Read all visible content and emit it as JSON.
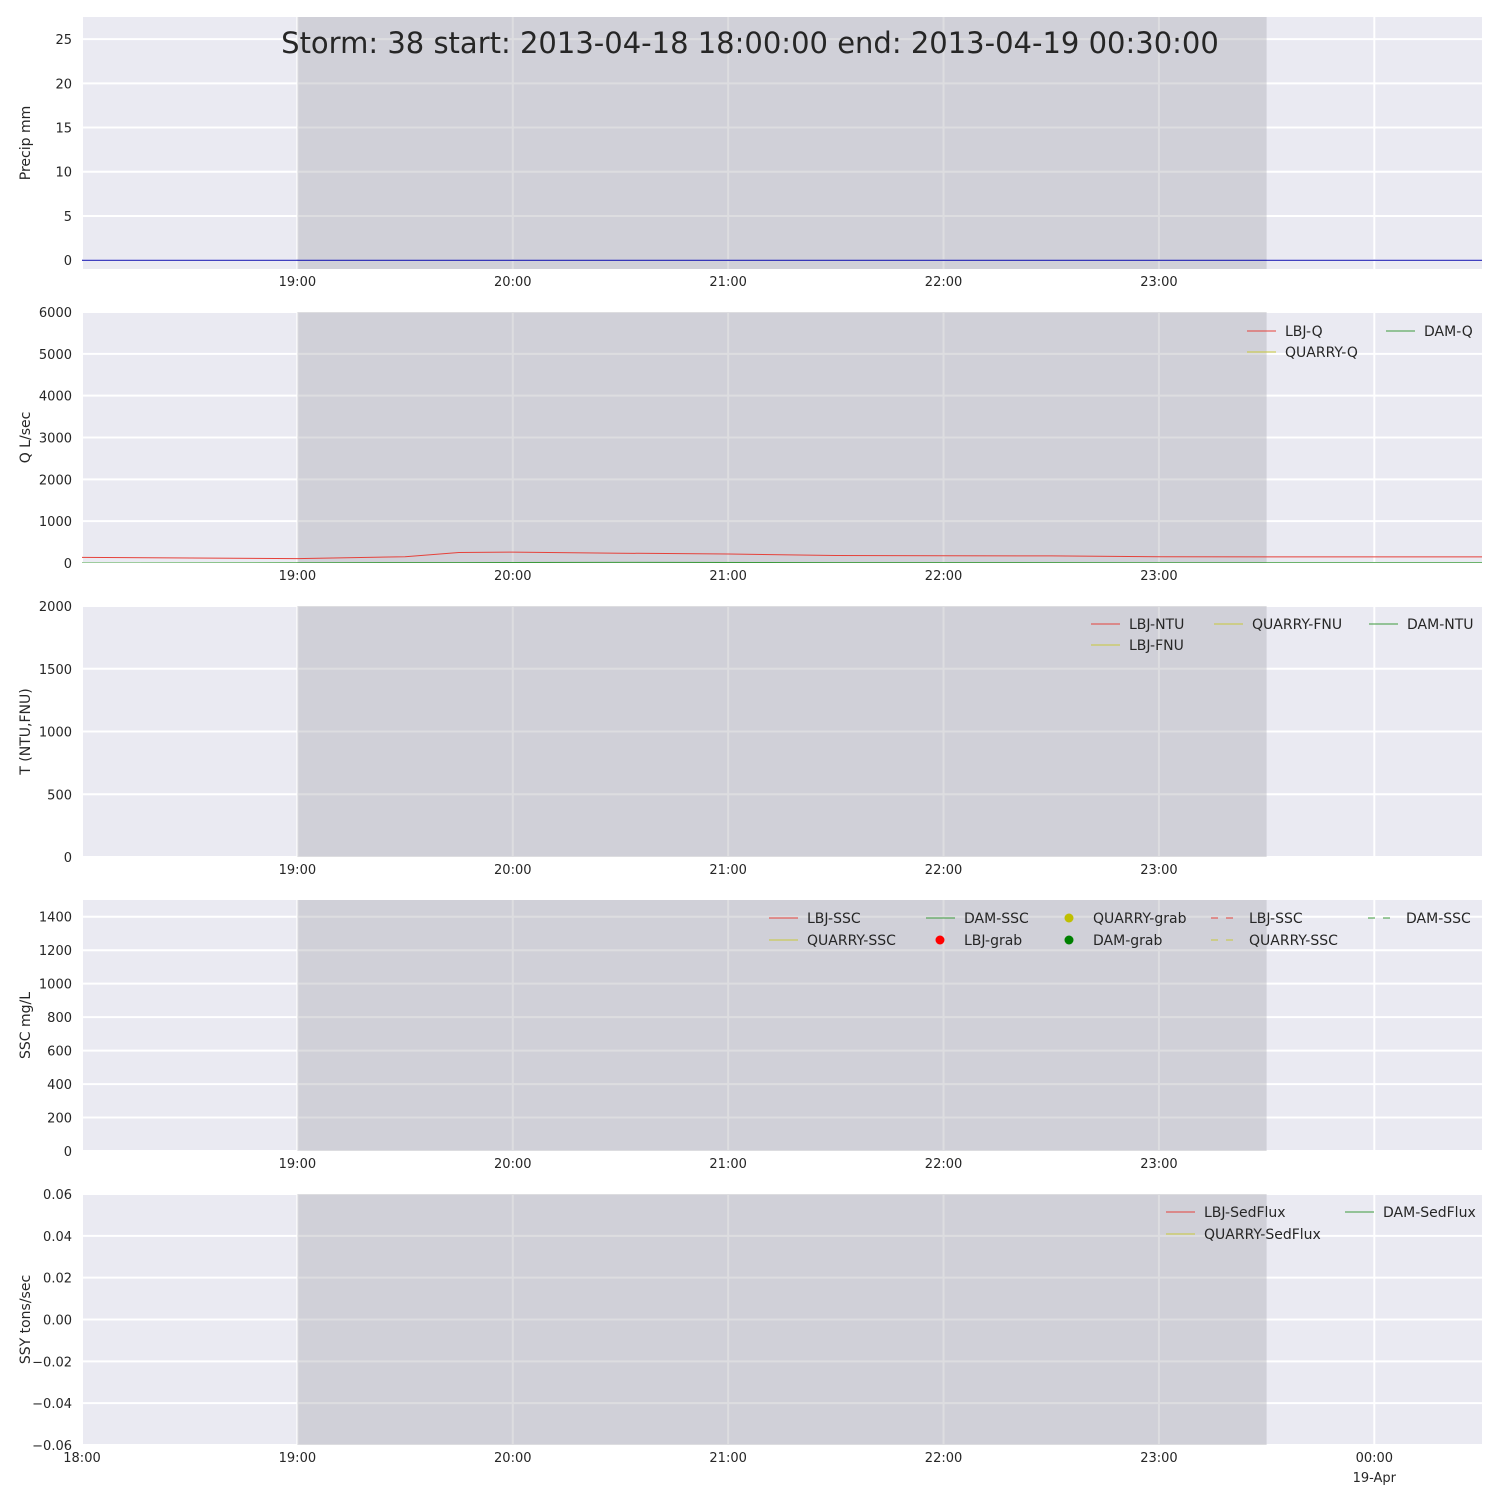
{
  "title": "Storm: 38 start: 2013-04-18 18:00:00 end: 2013-04-19 00:30:00",
  "x_axis": {
    "ticks": [
      "18:00",
      "19:00",
      "20:00",
      "21:00",
      "22:00",
      "23:00",
      "00:00"
    ],
    "date_label": "19-Apr"
  },
  "colors": {
    "plot_bg": "#eaeaf2",
    "storm_shade": "#cfcfd6",
    "grid": "#ffffff"
  },
  "chart_data": [
    {
      "type": "line",
      "ylabel": "Precip mm",
      "ylim": [
        -1,
        27.5
      ],
      "yticks": [
        "0",
        "5",
        "10",
        "15",
        "20",
        "25"
      ],
      "ytick_values": [
        0,
        5,
        10,
        15,
        20,
        25
      ],
      "x_range": [
        "2013-04-18 18:00",
        "2013-04-19 00:30"
      ],
      "storm_shading": [
        "2013-04-18 19:00",
        "2013-04-18 23:30"
      ],
      "legend": [],
      "series": [
        {
          "color": "#0000aa",
          "x": [
            "2013-04-18 18:00",
            "2013-04-19 00:30"
          ],
          "y": [
            0,
            0
          ]
        }
      ]
    },
    {
      "type": "line",
      "ylabel": "Q L/sec",
      "ylim": [
        0,
        6000
      ],
      "yticks": [
        "0",
        "1000",
        "2000",
        "3000",
        "4000",
        "5000",
        "6000"
      ],
      "ytick_values": [
        0,
        1000,
        2000,
        3000,
        4000,
        5000,
        6000
      ],
      "x_range": [
        "2013-04-18 18:00",
        "2013-04-19 00:30"
      ],
      "storm_shading": [
        "2013-04-18 19:00",
        "2013-04-18 23:30"
      ],
      "legend_placement": "top-right",
      "legend": [
        {
          "label": "LBJ-Q",
          "color": "#e5423b",
          "style": "line"
        },
        {
          "label": "DAM-Q",
          "color": "#3c9a3c",
          "style": "line"
        },
        {
          "label": "QUARRY-Q",
          "color": "#c8c83a",
          "style": "line"
        }
      ],
      "series": [
        {
          "name": "LBJ-Q",
          "color": "#e5423b",
          "x": [
            "2013-04-18 18:00",
            "2013-04-18 19:00",
            "2013-04-18 19:30",
            "2013-04-18 19:45",
            "2013-04-18 20:00",
            "2013-04-18 20:30",
            "2013-04-18 21:00",
            "2013-04-18 21:30",
            "2013-04-18 22:00",
            "2013-04-18 22:30",
            "2013-04-18 23:00",
            "2013-04-18 23:30",
            "2013-04-19 00:00",
            "2013-04-19 00:30"
          ],
          "y": [
            135,
            105,
            150,
            250,
            260,
            235,
            215,
            180,
            175,
            170,
            150,
            145,
            145,
            145
          ]
        },
        {
          "name": "DAM-Q",
          "color": "#3c9a3c",
          "x": [
            "2013-04-18 18:00",
            "2013-04-18 19:45",
            "2013-04-18 20:30",
            "2013-04-18 21:30",
            "2013-04-19 00:30"
          ],
          "y": [
            0,
            10,
            15,
            10,
            5
          ]
        }
      ]
    },
    {
      "type": "line",
      "ylabel": "T (NTU,FNU)",
      "ylim": [
        0,
        2000
      ],
      "yticks": [
        "0",
        "500",
        "1000",
        "1500",
        "2000"
      ],
      "ytick_values": [
        0,
        500,
        1000,
        1500,
        2000
      ],
      "x_range": [
        "2013-04-18 18:00",
        "2013-04-19 00:30"
      ],
      "storm_shading": [
        "2013-04-18 19:00",
        "2013-04-18 23:30"
      ],
      "legend_placement": "top-right",
      "legend": [
        {
          "label": "LBJ-NTU",
          "color": "#e5423b",
          "style": "line"
        },
        {
          "label": "QUARRY-FNU",
          "color": "#c8c83a",
          "style": "line"
        },
        {
          "label": "DAM-NTU",
          "color": "#3c9a3c",
          "style": "line"
        },
        {
          "label": "LBJ-FNU",
          "color": "#c8c83a",
          "style": "line"
        }
      ],
      "series": []
    },
    {
      "type": "line",
      "ylabel": "SSC mg/L",
      "ylim": [
        0,
        1500
      ],
      "yticks": [
        "0",
        "200",
        "400",
        "600",
        "800",
        "1000",
        "1200",
        "1400"
      ],
      "ytick_values": [
        0,
        200,
        400,
        600,
        800,
        1000,
        1200,
        1400
      ],
      "x_range": [
        "2013-04-18 18:00",
        "2013-04-19 00:30"
      ],
      "storm_shading": [
        "2013-04-18 19:00",
        "2013-04-18 23:30"
      ],
      "legend_placement": "top-right",
      "legend": [
        {
          "label": "LBJ-SSC",
          "color": "#e5423b",
          "style": "line"
        },
        {
          "label": "DAM-SSC",
          "color": "#3c9a3c",
          "style": "line"
        },
        {
          "label": "QUARRY-grab",
          "color": "#bfbf00",
          "style": "dot"
        },
        {
          "label": "LBJ-SSC",
          "color": "#e5423b",
          "style": "dash"
        },
        {
          "label": "DAM-SSC",
          "color": "#3c9a3c",
          "style": "dash"
        },
        {
          "label": "QUARRY-SSC",
          "color": "#c8c83a",
          "style": "line"
        },
        {
          "label": "LBJ-grab",
          "color": "#ff0000",
          "style": "dot"
        },
        {
          "label": "DAM-grab",
          "color": "#008000",
          "style": "dot"
        },
        {
          "label": "QUARRY-SSC",
          "color": "#c8c83a",
          "style": "dash"
        }
      ],
      "series": []
    },
    {
      "type": "line",
      "ylabel": "SSY tons/sec",
      "ylim": [
        -0.06,
        0.06
      ],
      "yticks": [
        "−0.06",
        "−0.04",
        "−0.02",
        "0.00",
        "0.02",
        "0.04",
        "0.06"
      ],
      "ytick_values": [
        -0.06,
        -0.04,
        -0.02,
        0,
        0.02,
        0.04,
        0.06
      ],
      "x_range": [
        "2013-04-18 18:00",
        "2013-04-19 00:30"
      ],
      "storm_shading": [
        "2013-04-18 19:00",
        "2013-04-18 23:30"
      ],
      "legend_placement": "top-right",
      "legend": [
        {
          "label": "LBJ-SedFlux",
          "color": "#e5423b",
          "style": "line"
        },
        {
          "label": "DAM-SedFlux",
          "color": "#3c9a3c",
          "style": "line"
        },
        {
          "label": "QUARRY-SedFlux",
          "color": "#c8c83a",
          "style": "line"
        }
      ],
      "series": []
    }
  ]
}
